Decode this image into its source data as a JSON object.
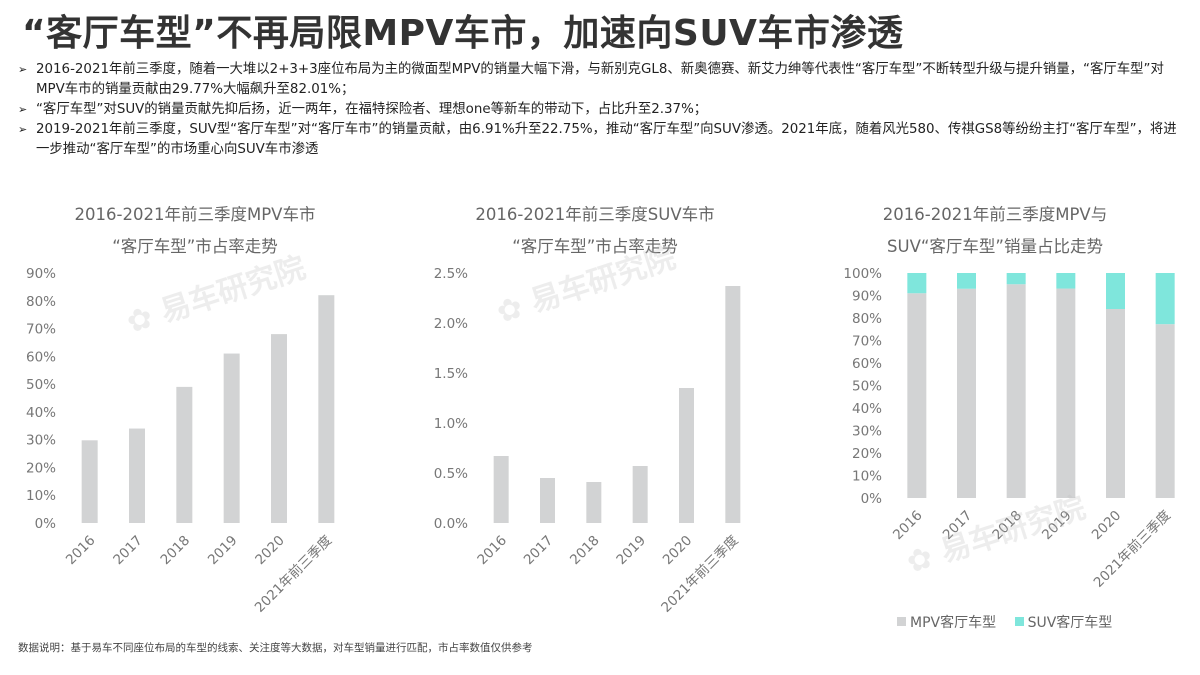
{
  "title": "“客厅车型”不再局限MPV车市，加速向SUV车市渗透",
  "bullets": [
    "2016-2021年前三季度，随着一大堆以2+3+3座位布局为主的微面型MPV的销量大幅下滑，与新别克GL8、新奥德赛、新艾力绅等代表性“客厅车型”不断转型升级与提升销量，“客厅车型”对MPV车市的销量贡献由29.77%大幅飙升至82.01%；",
    "“客厅车型”对SUV的销量贡献先抑后扬，近一两年，在福特探险者、理想one等新车的带动下，占比升至2.37%；",
    "2019-2021年前三季度，SUV型“客厅车型”对“客厅车市”的销量贡献，由6.91%升至22.75%，推动“客厅车型”向SUV渗透。2021年底，随着风光580、传祺GS8等纷纷主打“客厅车型”，将进一步推动“客厅车型”的市场重心向SUV车市渗透"
  ],
  "watermark": "易车研究院",
  "footnote": "数据说明：基于易车不同座位布局的车型的线索、关注度等大数据，对车型销量进行匹配，市占率数值仅供参考",
  "colors": {
    "bar": "#d2d3d4",
    "suv": "#7fe6dc",
    "axis_text": "#777777",
    "title_text": "#666666"
  },
  "chart_data": [
    {
      "type": "bar",
      "title": [
        "2016-2021年前三季度MPV车市",
        "“客厅车型”市占率走势"
      ],
      "categories": [
        "2016",
        "2017",
        "2018",
        "2019",
        "2020",
        "2021年前三季度"
      ],
      "values": [
        29.77,
        34,
        49,
        61,
        68,
        82.01
      ],
      "ylim": [
        0,
        90
      ],
      "yticks": [
        "0%",
        "10%",
        "20%",
        "30%",
        "40%",
        "50%",
        "60%",
        "70%",
        "80%",
        "90%"
      ],
      "grid": false
    },
    {
      "type": "bar",
      "title": [
        "2016-2021年前三季度SUV车市",
        "“客厅车型”市占率走势"
      ],
      "categories": [
        "2016",
        "2017",
        "2018",
        "2019",
        "2020",
        "2021年前三季度"
      ],
      "values": [
        0.67,
        0.45,
        0.41,
        0.57,
        1.35,
        2.37
      ],
      "ylim": [
        0,
        2.5
      ],
      "yticks": [
        "0.0%",
        "0.5%",
        "1.0%",
        "1.5%",
        "2.0%",
        "2.5%"
      ],
      "grid": false
    },
    {
      "type": "bar",
      "stacked": true,
      "title": [
        "2016-2021年前三季度MPV与",
        "SUV“客厅车型”销量占比走势"
      ],
      "categories": [
        "2016",
        "2017",
        "2018",
        "2019",
        "2020",
        "2021年前三季度"
      ],
      "series": [
        {
          "name": "MPV客厅车型",
          "values": [
            91,
            93,
            95,
            93.09,
            84,
            77.25
          ]
        },
        {
          "name": "SUV客厅车型",
          "values": [
            9,
            7,
            5,
            6.91,
            16,
            22.75
          ]
        }
      ],
      "ylim": [
        0,
        100
      ],
      "yticks": [
        "0%",
        "10%",
        "20%",
        "30%",
        "40%",
        "50%",
        "60%",
        "70%",
        "80%",
        "90%",
        "100%"
      ],
      "legend": "bottom",
      "grid": false
    }
  ]
}
